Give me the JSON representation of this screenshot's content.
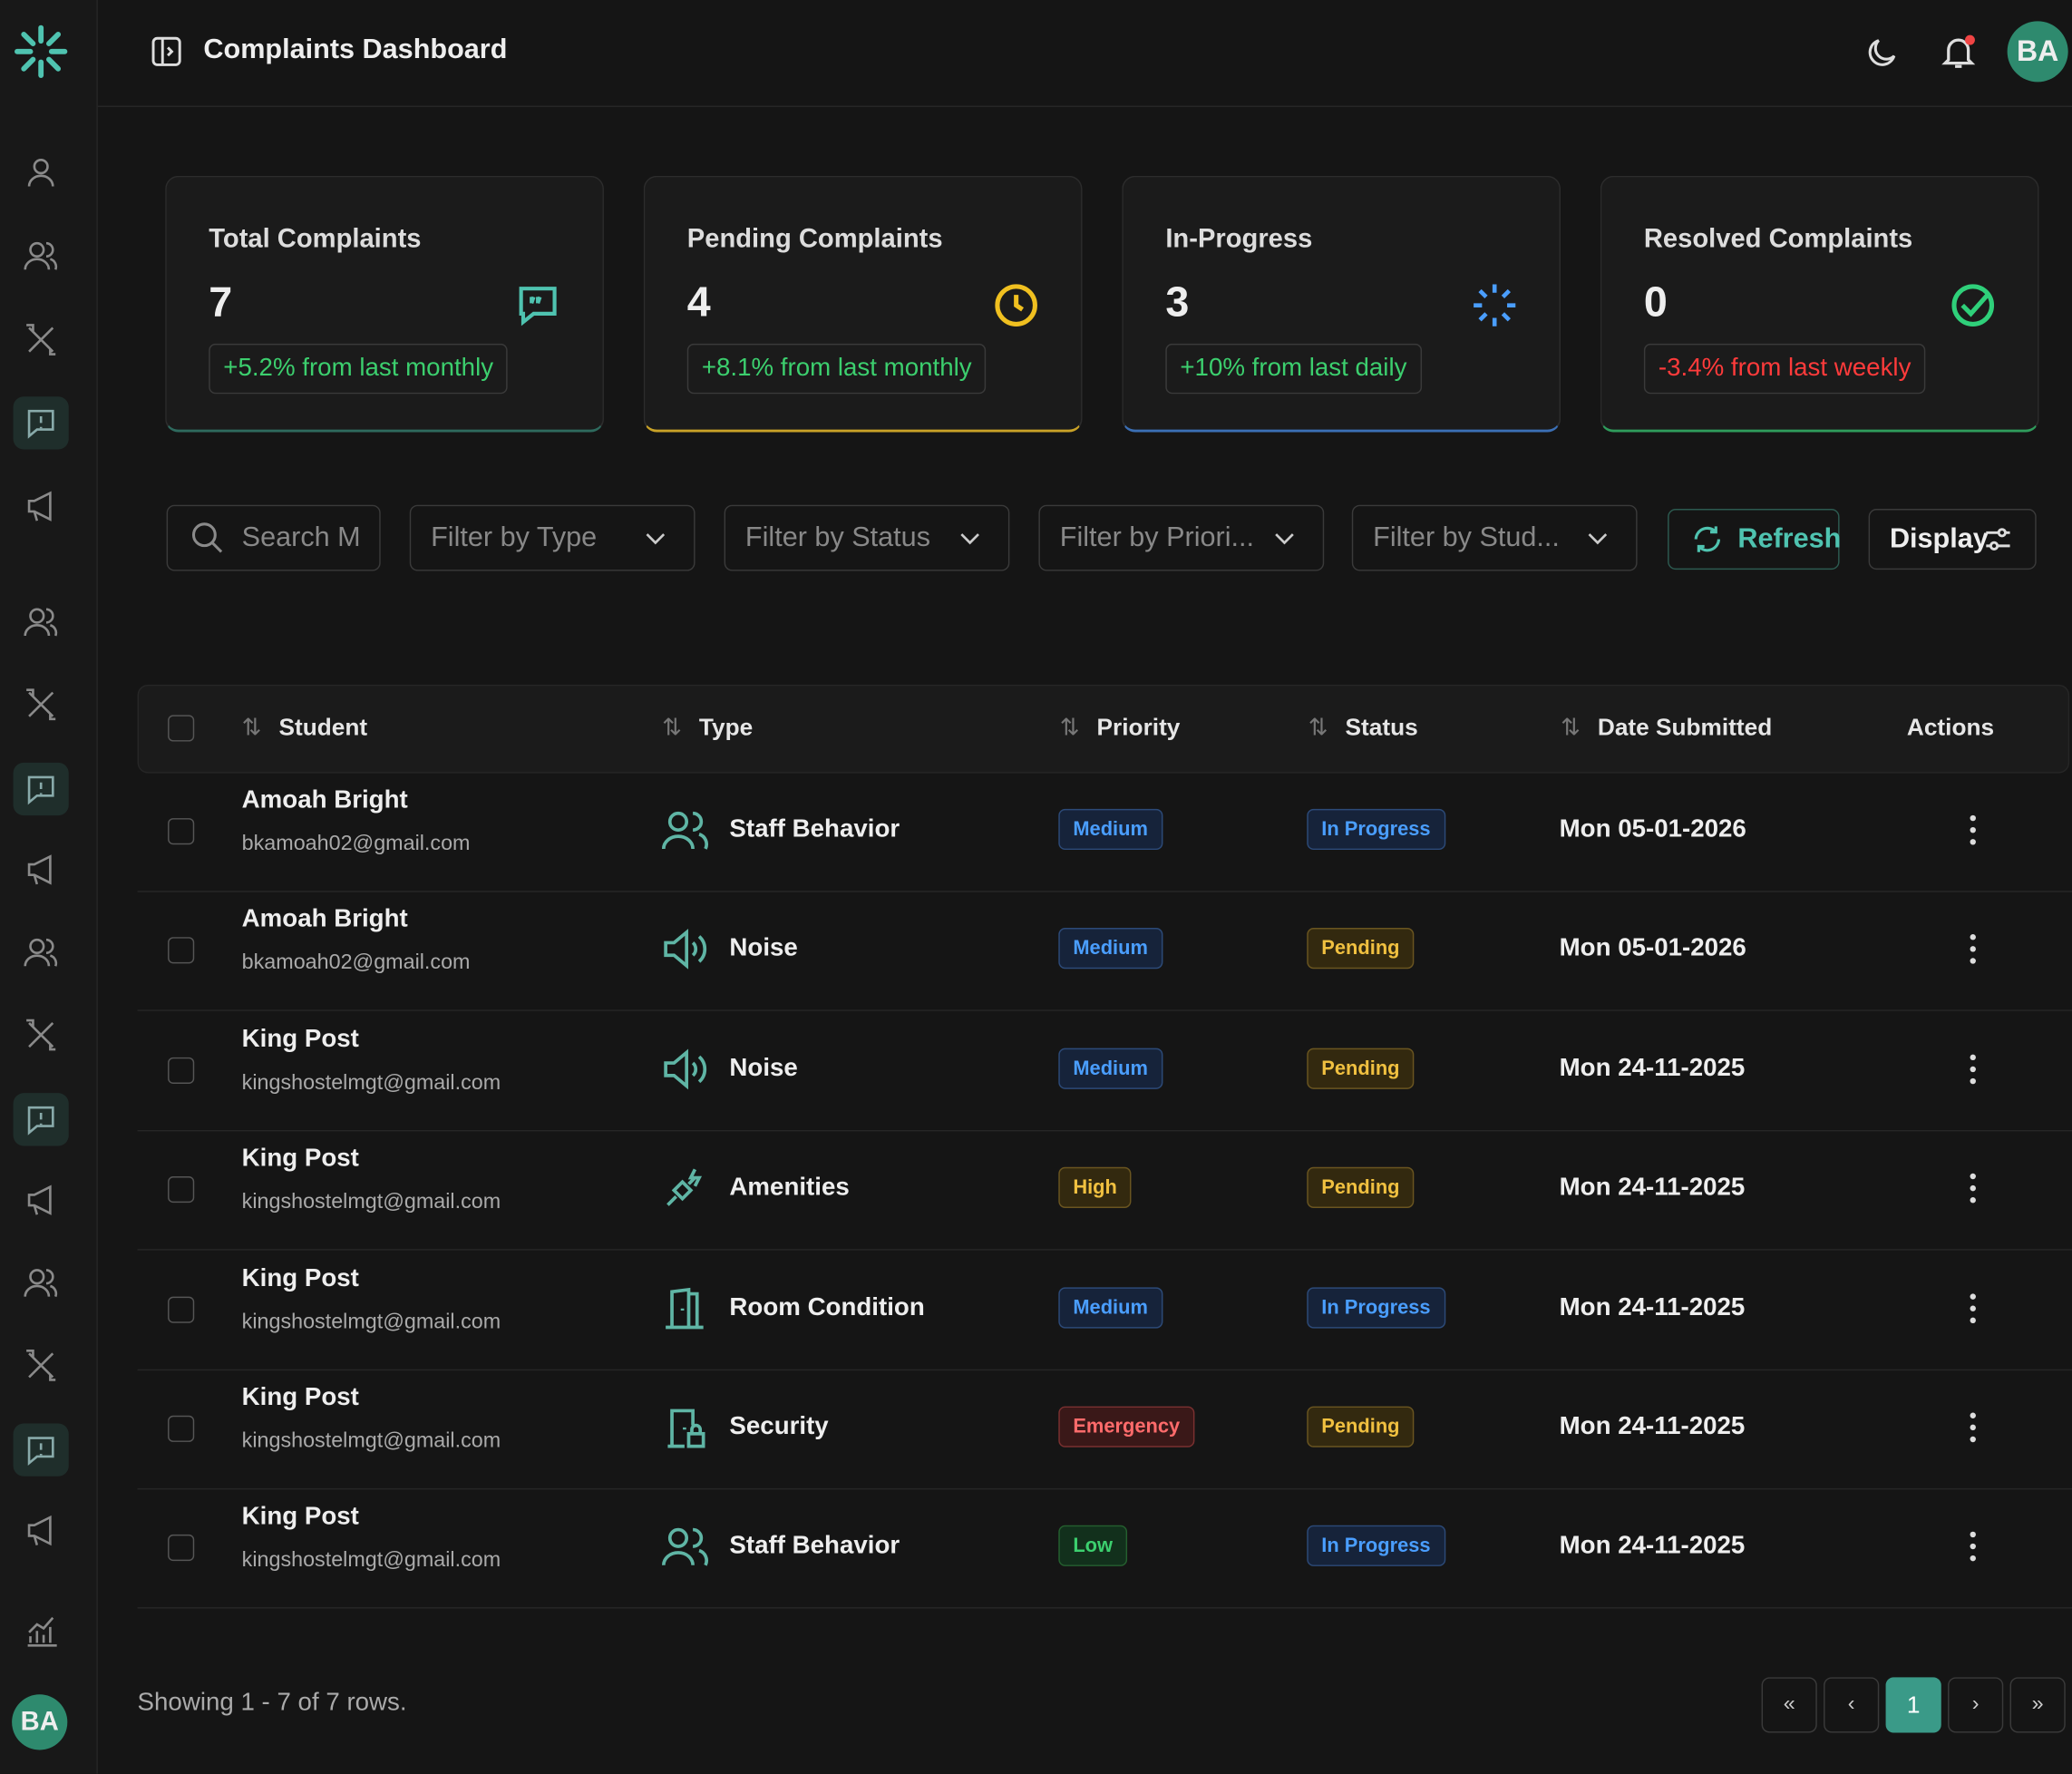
{
  "header": {
    "title": "Complaints Dashboard",
    "avatar": "BA"
  },
  "cards": [
    {
      "title": "Total Complaints",
      "value": 7,
      "change": "+5.2% from last monthly"
    },
    {
      "title": "Pending Complaints",
      "value": 4,
      "change": "+8.1% from last monthly"
    },
    {
      "title": "In-Progress",
      "value": 3,
      "change": "+10% from last daily"
    },
    {
      "title": "Resolved Complaints",
      "value": 0,
      "change": "-3.4% from last weekly"
    }
  ],
  "filters": {
    "search": "Search M",
    "type": "Filter by Type",
    "status": "Filter by Status",
    "priority": "Filter by Priori...",
    "student": "Filter by Stud...",
    "refresh": "Refresh",
    "display": "Display"
  },
  "table": {
    "headers": [
      "Student",
      "Type",
      "Priority",
      "Status",
      "Date Submitted",
      "Actions"
    ],
    "rows": [
      [
        "Amoah Bright",
        "bkamoah02@gmail.com",
        "Staff Behavior",
        "Medium",
        "In Progress",
        "Mon 05-01-2026"
      ],
      [
        "Amoah Bright",
        "bkamoah02@gmail.com",
        "Noise",
        "Medium",
        "Pending",
        "Mon 05-01-2026"
      ],
      [
        "King Post",
        "kingshostelmgt@gmail.com",
        "Noise",
        "Medium",
        "Pending",
        "Mon 24-11-2025"
      ],
      [
        "King Post",
        "kingshostelmgt@gmail.com",
        "Amenities",
        "High",
        "Pending",
        "Mon 24-11-2025"
      ],
      [
        "King Post",
        "kingshostelmgt@gmail.com",
        "Room Condition",
        "Medium",
        "In Progress",
        "Mon 24-11-2025"
      ],
      [
        "King Post",
        "kingshostelmgt@gmail.com",
        "Security",
        "Emergency",
        "Pending",
        "Mon 24-11-2025"
      ],
      [
        "King Post",
        "kingshostelmgt@gmail.com",
        "Staff Behavior",
        "Low",
        "In Progress",
        "Mon 24-11-2025"
      ]
    ]
  },
  "footer": {
    "showing": "Showing 1 - 7 of 7 rows.",
    "page": "1"
  },
  "sidebar": {
    "avatar": "BA"
  }
}
